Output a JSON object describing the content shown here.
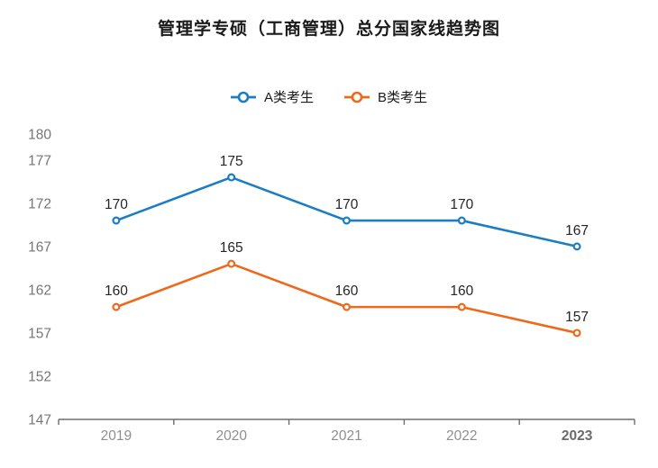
{
  "title": "管理学专硕（工商管理）总分国家线趋势图",
  "chart_data": {
    "type": "line",
    "title": "管理学专硕（工商管理）总分国家线趋势图",
    "categories": [
      "2019",
      "2020",
      "2021",
      "2022",
      "2023"
    ],
    "series": [
      {
        "name": "A类考生",
        "color": "#1b7ec2",
        "values": [
          170,
          175,
          170,
          170,
          167
        ]
      },
      {
        "name": "B类考生",
        "color": "#ed6a1c",
        "values": [
          160,
          165,
          160,
          160,
          157
        ]
      }
    ],
    "y_ticks": [
      147,
      152,
      157,
      162,
      167,
      172,
      177,
      180
    ],
    "ylim": [
      147,
      180
    ],
    "grid": false,
    "legend_position": "top",
    "data_labels": true,
    "marker": "open-circle",
    "highlighted_category": "2023",
    "colors": {
      "axis": "#6e6e6e",
      "tick_label": "#757575",
      "x_label": "#8f8f8f",
      "x_label_highlight": "#6b6b6b",
      "data_label": "#262626",
      "background": "#ffffff"
    }
  }
}
